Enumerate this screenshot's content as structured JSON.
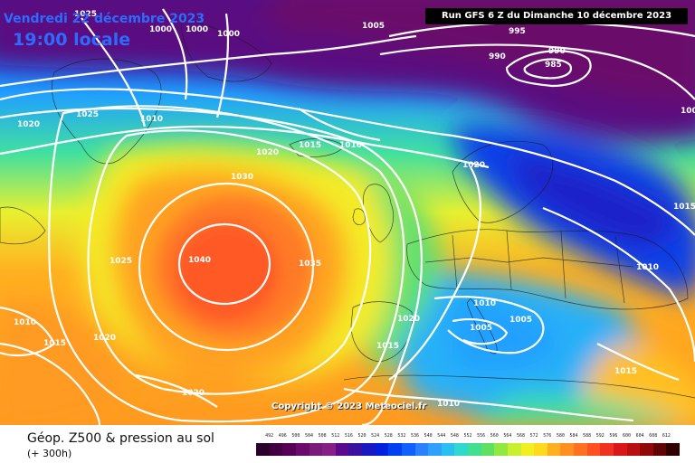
{
  "header": {
    "valid_date": "Vendredi 22 décembre 2023",
    "valid_time": "19:00 locale",
    "run_info": "Run GFS 6 Z du Dimanche 10 décembre 2023"
  },
  "copyright": "Copyright © 2023 Meteociel.fr",
  "footer": {
    "title": "Géop. Z500 & pression au sol",
    "lead_time": "(+ 300h)"
  },
  "isobar_labels": [
    "1025",
    "1000",
    "1000",
    "1000",
    "1005",
    "995",
    "990",
    "990",
    "985",
    "1020",
    "1025",
    "1010",
    "1015",
    "1010",
    "1020",
    "1030",
    "1020",
    "1015",
    "1025",
    "1040",
    "1035",
    "1010",
    "1020",
    "1015",
    "1020",
    "1010",
    "1020",
    "1005",
    "1005",
    "1015",
    "1010",
    "1015",
    "1000"
  ],
  "legend": {
    "ticks": [
      "492",
      "496",
      "500",
      "504",
      "508",
      "512",
      "516",
      "520",
      "524",
      "528",
      "532",
      "536",
      "540",
      "544",
      "548",
      "552",
      "556",
      "560",
      "564",
      "568",
      "572",
      "576",
      "580",
      "584",
      "588",
      "592",
      "596",
      "600",
      "604",
      "608",
      "612"
    ],
    "colors": [
      "#2a002a",
      "#400040",
      "#550055",
      "#6a0a6a",
      "#7a1a7a",
      "#862086",
      "#5a0a8a",
      "#3a10a0",
      "#1a18c0",
      "#0020e0",
      "#0040f0",
      "#1060ff",
      "#2a80ff",
      "#30a0ff",
      "#28c0f0",
      "#30d8d0",
      "#40e090",
      "#60e060",
      "#90e840",
      "#c8f030",
      "#f0f020",
      "#ffd820",
      "#ffb020",
      "#ff9020",
      "#ff7020",
      "#ff5020",
      "#f03020",
      "#d81818",
      "#b81010",
      "#900808",
      "#600404",
      "#300000"
    ]
  },
  "colors": {
    "high_pressure_core": "#ff5a28",
    "low_pressure_core": "#6a0a6a",
    "isobar": "#ffffff",
    "header_text": "#2b6cff"
  }
}
